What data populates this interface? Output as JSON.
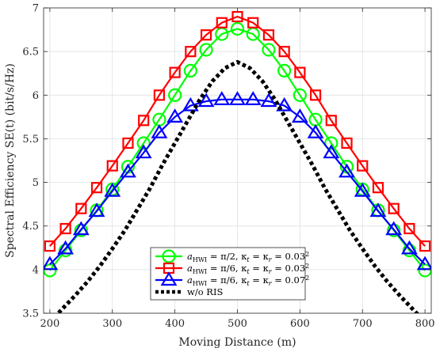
{
  "chart_data": {
    "type": "line",
    "xlabel": "Moving Distance (m)",
    "ylabel": "Spectral Efficiency SE(t) (bit/s/Hz)",
    "xlim": [
      190,
      810
    ],
    "ylim": [
      3.5,
      7
    ],
    "xticks": [
      200,
      300,
      400,
      500,
      600,
      700,
      800
    ],
    "yticks": [
      3.5,
      4,
      4.5,
      5,
      5.5,
      6,
      6.5,
      7
    ],
    "xtick_labels": [
      "200",
      "300",
      "400",
      "500",
      "600",
      "700",
      "800"
    ],
    "ytick_labels": [
      "3.5",
      "4",
      "4.5",
      "5",
      "5.5",
      "6",
      "6.5",
      "7"
    ],
    "grid": true,
    "legend_position": "bottom-center",
    "x": [
      200,
      225,
      250,
      275,
      300,
      325,
      350,
      375,
      400,
      425,
      450,
      475,
      500,
      525,
      550,
      575,
      600,
      625,
      650,
      675,
      700,
      725,
      750,
      775,
      800
    ],
    "series": [
      {
        "name": "a_HWI = π/2, κt = κr = 0.03²",
        "color": "#00ff00",
        "marker": "circle",
        "line": "solid",
        "values": [
          3.99,
          4.22,
          4.45,
          4.68,
          4.92,
          5.18,
          5.45,
          5.72,
          6.0,
          6.28,
          6.52,
          6.7,
          6.76,
          6.7,
          6.52,
          6.28,
          6.0,
          5.72,
          5.45,
          5.18,
          4.92,
          4.68,
          4.45,
          4.22,
          3.99
        ]
      },
      {
        "name": "a_HWI = π/6, κt = κr = 0.03²",
        "color": "#ff0000",
        "marker": "square",
        "line": "solid",
        "values": [
          4.27,
          4.47,
          4.7,
          4.94,
          5.19,
          5.45,
          5.71,
          6.0,
          6.26,
          6.5,
          6.69,
          6.83,
          6.9,
          6.83,
          6.69,
          6.5,
          6.26,
          6.0,
          5.71,
          5.45,
          5.19,
          4.94,
          4.7,
          4.47,
          4.27
        ]
      },
      {
        "name": "a_HWI = π/6, κt = κr = 0.07²",
        "color": "#0000ff",
        "marker": "triangle",
        "line": "solid",
        "values": [
          4.06,
          4.24,
          4.46,
          4.67,
          4.9,
          5.12,
          5.34,
          5.57,
          5.75,
          5.88,
          5.93,
          5.95,
          5.95,
          5.95,
          5.93,
          5.88,
          5.75,
          5.57,
          5.34,
          5.12,
          4.9,
          4.67,
          4.46,
          4.24,
          4.06
        ]
      },
      {
        "name": "w/o RIS",
        "color": "#000000",
        "marker": "none",
        "line": "dotted",
        "x": [
          200,
          220,
          240,
          260,
          280,
          300,
          320,
          340,
          360,
          380,
          400,
          420,
          440,
          460,
          480,
          500,
          520,
          540,
          560,
          580,
          600,
          620,
          640,
          660,
          680,
          700,
          720,
          740,
          760,
          780,
          800
        ],
        "values": [
          3.4,
          3.55,
          3.7,
          3.86,
          4.04,
          4.24,
          4.45,
          4.69,
          4.93,
          5.2,
          5.45,
          5.7,
          5.95,
          6.16,
          6.31,
          6.38,
          6.31,
          6.16,
          5.95,
          5.7,
          5.45,
          5.2,
          4.93,
          4.69,
          4.45,
          4.24,
          4.04,
          3.86,
          3.7,
          3.55,
          3.4
        ]
      }
    ]
  }
}
